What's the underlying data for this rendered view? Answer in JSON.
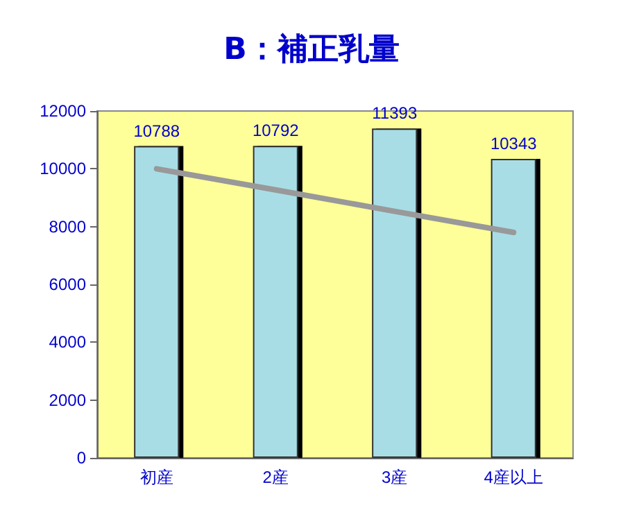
{
  "chart_data": {
    "type": "bar",
    "title": "B：補正乳量",
    "categories": [
      "初産",
      "2産",
      "3産",
      "4産以上"
    ],
    "series": [
      {
        "color": "#a8dde6",
        "values": [
          10788,
          10792,
          11393,
          10343
        ],
        "data_labels": true
      },
      {
        "type": "line",
        "color": "#999999",
        "values": [
          10000,
          9270,
          8530,
          7800
        ],
        "marker": "none"
      }
    ],
    "ylim": [
      0,
      12000
    ],
    "yticks": [
      0,
      2000,
      4000,
      6000,
      8000,
      10000,
      12000
    ],
    "grid": false
  }
}
